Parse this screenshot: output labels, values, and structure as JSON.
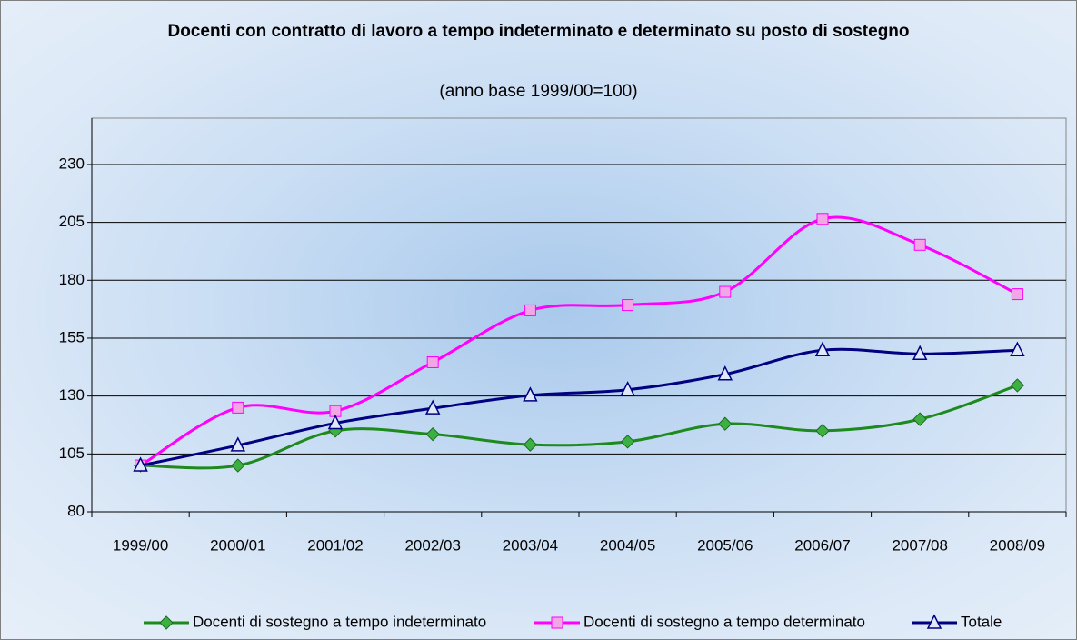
{
  "chart_data": {
    "type": "line",
    "title": "Docenti con contratto di lavoro a tempo indeterminato e determinato su posto di sostegno",
    "subtitle": "(anno base 1999/00=100)",
    "categories": [
      "1999/00",
      "2000/01",
      "2001/02",
      "2002/03",
      "2003/04",
      "2004/05",
      "2005/06",
      "2006/07",
      "2007/08",
      "2008/09"
    ],
    "series": [
      {
        "name": "Docenti di sostegno a tempo indeterminato",
        "color": "#1e8a1e",
        "values": [
          100,
          100,
          115,
          113.5,
          109,
          110.3,
          118,
          115,
          120,
          134.6
        ]
      },
      {
        "name": "Docenti di sostegno a tempo determinato",
        "color": "#ff00ff",
        "values": [
          100,
          125,
          123.5,
          144.6,
          167,
          169.3,
          175,
          206.5,
          195.3,
          174
        ]
      },
      {
        "name": "Totale",
        "color": "#000080",
        "values": [
          100,
          108.7,
          118.3,
          124.7,
          130.3,
          132.7,
          139.4,
          149.8,
          148.2,
          149.8
        ]
      }
    ],
    "ylim": [
      80,
      250
    ],
    "yticks": [
      80,
      105,
      130,
      155,
      180,
      205,
      230
    ],
    "grid": true
  }
}
